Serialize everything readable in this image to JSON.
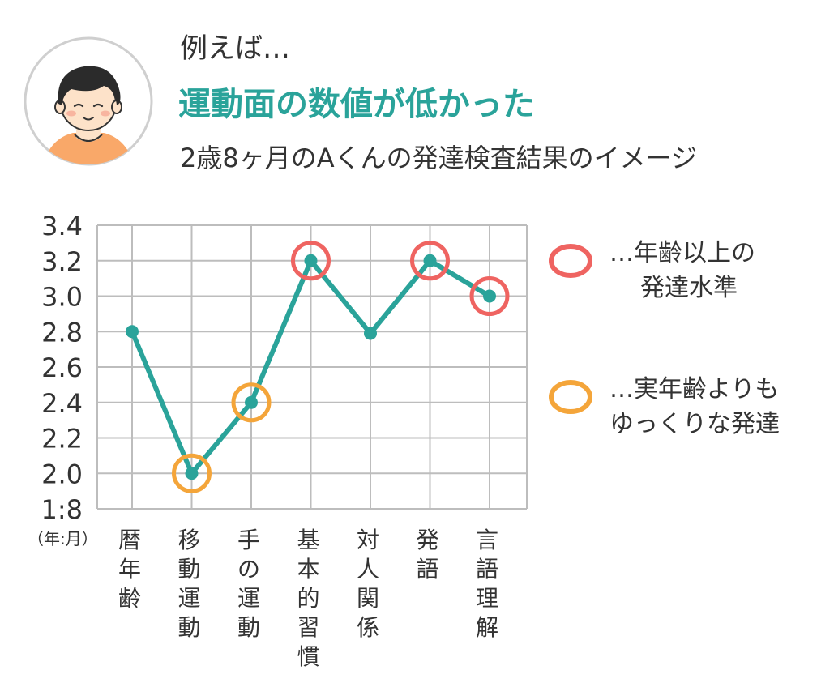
{
  "header": {
    "intro": "例えば…",
    "headline": "運動面の数値が低かった",
    "subtitle": "2歳8ヶ月のAくんの発達検査結果のイメージ"
  },
  "legend": {
    "red_label_line1": "…年齢以上の",
    "red_label_line2": "発達水準",
    "orange_label_line1": "…実年齢よりも",
    "orange_label_line2": "ゆっくりな発達"
  },
  "colors": {
    "line": "#2aa39a",
    "above_age_ring": "#ef6461",
    "slower_ring": "#f4a53a",
    "grid": "#bdbdbd",
    "headline": "#2aa39a"
  },
  "chart_data": {
    "type": "line",
    "y_unit_label": "（年:月）",
    "y_ticks": [
      "1:8",
      "2.0",
      "2.2",
      "2.4",
      "2.6",
      "2.8",
      "3.0",
      "3.2",
      "3.4"
    ],
    "categories": [
      "暦年齢",
      "移動運動",
      "手の運動",
      "基本的習慣",
      "対人関係",
      "発語",
      "言語理解"
    ],
    "values": [
      2.8,
      2.0,
      2.4,
      3.2,
      2.79,
      3.2,
      3.0
    ],
    "ylim": [
      1.8,
      3.4
    ],
    "grid": true,
    "legend_position": "right",
    "highlights": {
      "above_age": [
        "基本的習慣",
        "発語",
        "言語理解"
      ],
      "slower": [
        "移動運動",
        "手の運動"
      ]
    }
  }
}
